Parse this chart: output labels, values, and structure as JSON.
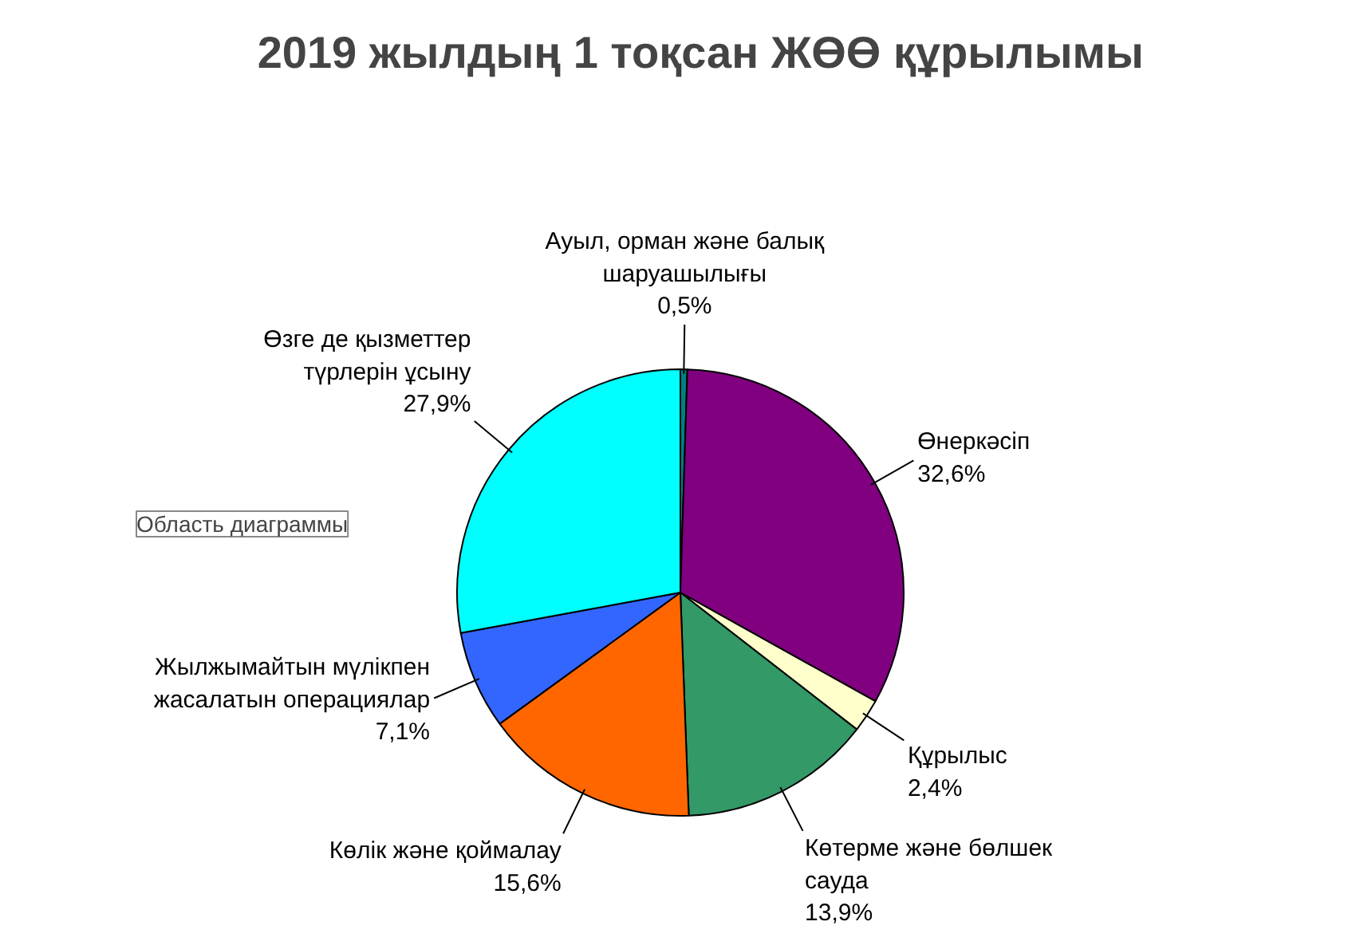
{
  "chart_data": {
    "type": "pie",
    "title": "2019 жылдың 1 тоқсан  ЖӨӨ құрылымы",
    "categories": [
      "Ауыл, орман және балық шаруашылығы",
      "Өнеркәсіп",
      "Құрылыс",
      "Көтерме және бөлшек сауда",
      "Көлік және қоймалау",
      "Жылжымайтын мүлікпен жасалатын операциялар",
      "Өзге де қызметтер түрлерін ұсыну"
    ],
    "values": [
      0.5,
      32.6,
      2.4,
      13.9,
      15.6,
      7.1,
      27.9
    ],
    "value_labels": [
      "0,5%",
      "32,6%",
      "2,4%",
      "13,9%",
      "15,6%",
      "7,1%",
      "27,9%"
    ],
    "colors": [
      "#008080",
      "#800080",
      "#ffffcc",
      "#339966",
      "#ff6600",
      "#3366ff",
      "#00ffff"
    ],
    "annotations": [
      "Область диаграммы"
    ]
  }
}
